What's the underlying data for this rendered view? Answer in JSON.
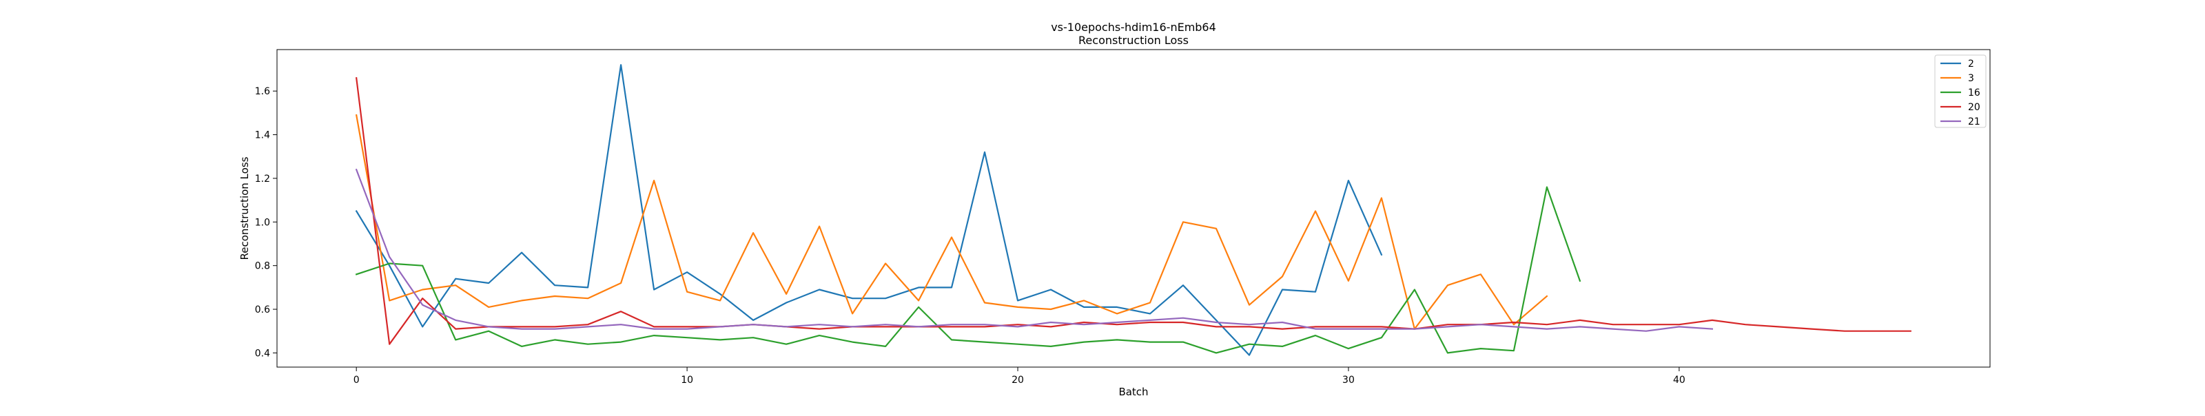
{
  "chart_data": {
    "type": "line",
    "title": "vs-10epochs-hdim16-nEmb64",
    "subtitle": "Reconstruction Loss",
    "xlabel": "Batch",
    "ylabel": "Reconstruction Loss",
    "xlim": [
      -2.4,
      49.4
    ],
    "ylim": [
      0.335,
      1.79
    ],
    "xticks": [
      0,
      10,
      20,
      30,
      40
    ],
    "yticks": [
      0.4,
      0.6,
      0.8,
      1.0,
      1.2,
      1.4,
      1.6
    ],
    "ytick_labels": [
      "0.4",
      "0.6",
      "0.8",
      "1.0",
      "1.2",
      "1.4",
      "1.6"
    ],
    "grid": false,
    "legend_position": "top-right",
    "series": [
      {
        "name": "2",
        "color": "#1f77b4",
        "values": [
          1.05,
          0.8,
          0.52,
          0.74,
          0.72,
          0.86,
          0.71,
          0.7,
          1.72,
          0.69,
          0.77,
          0.67,
          0.55,
          0.63,
          0.69,
          0.65,
          0.65,
          0.7,
          0.7,
          1.32,
          0.64,
          0.69,
          0.61,
          0.61,
          0.58,
          0.71,
          0.55,
          0.39,
          0.69,
          0.68,
          1.19,
          0.85
        ]
      },
      {
        "name": "3",
        "color": "#ff7f0e",
        "values": [
          1.49,
          0.64,
          0.69,
          0.71,
          0.61,
          0.64,
          0.66,
          0.65,
          0.72,
          1.19,
          0.68,
          0.64,
          0.95,
          0.67,
          0.98,
          0.58,
          0.81,
          0.64,
          0.93,
          0.63,
          0.61,
          0.6,
          0.64,
          0.58,
          0.63,
          1.0,
          0.97,
          0.62,
          0.75,
          1.05,
          0.73,
          1.11,
          0.51,
          0.71,
          0.76,
          0.53,
          0.66
        ]
      },
      {
        "name": "16",
        "color": "#2ca02c",
        "values": [
          0.76,
          0.81,
          0.8,
          0.46,
          0.5,
          0.43,
          0.46,
          0.44,
          0.45,
          0.48,
          0.47,
          0.46,
          0.47,
          0.44,
          0.48,
          0.45,
          0.43,
          0.61,
          0.46,
          0.45,
          0.44,
          0.43,
          0.45,
          0.46,
          0.45,
          0.45,
          0.4,
          0.44,
          0.43,
          0.48,
          0.42,
          0.47,
          0.69,
          0.4,
          0.42,
          0.41,
          1.16,
          0.73
        ]
      },
      {
        "name": "20",
        "color": "#d62728",
        "values": [
          1.66,
          0.44,
          0.65,
          0.51,
          0.52,
          0.52,
          0.52,
          0.53,
          0.59,
          0.52,
          0.52,
          0.52,
          0.53,
          0.52,
          0.51,
          0.52,
          0.52,
          0.52,
          0.52,
          0.52,
          0.53,
          0.52,
          0.54,
          0.53,
          0.54,
          0.54,
          0.52,
          0.52,
          0.51,
          0.52,
          0.52,
          0.52,
          0.51,
          0.53,
          0.53,
          0.54,
          0.53,
          0.55,
          0.53,
          0.53,
          0.53,
          0.55,
          0.53,
          0.52,
          0.51,
          0.5,
          0.5,
          0.5
        ]
      },
      {
        "name": "21",
        "color": "#9467bd",
        "values": [
          1.24,
          0.84,
          0.62,
          0.55,
          0.52,
          0.51,
          0.51,
          0.52,
          0.53,
          0.51,
          0.51,
          0.52,
          0.53,
          0.52,
          0.53,
          0.52,
          0.53,
          0.52,
          0.53,
          0.53,
          0.52,
          0.54,
          0.53,
          0.54,
          0.55,
          0.56,
          0.54,
          0.53,
          0.54,
          0.51,
          0.51,
          0.51,
          0.51,
          0.52,
          0.53,
          0.52,
          0.51,
          0.52,
          0.51,
          0.5,
          0.52,
          0.51
        ]
      }
    ]
  }
}
